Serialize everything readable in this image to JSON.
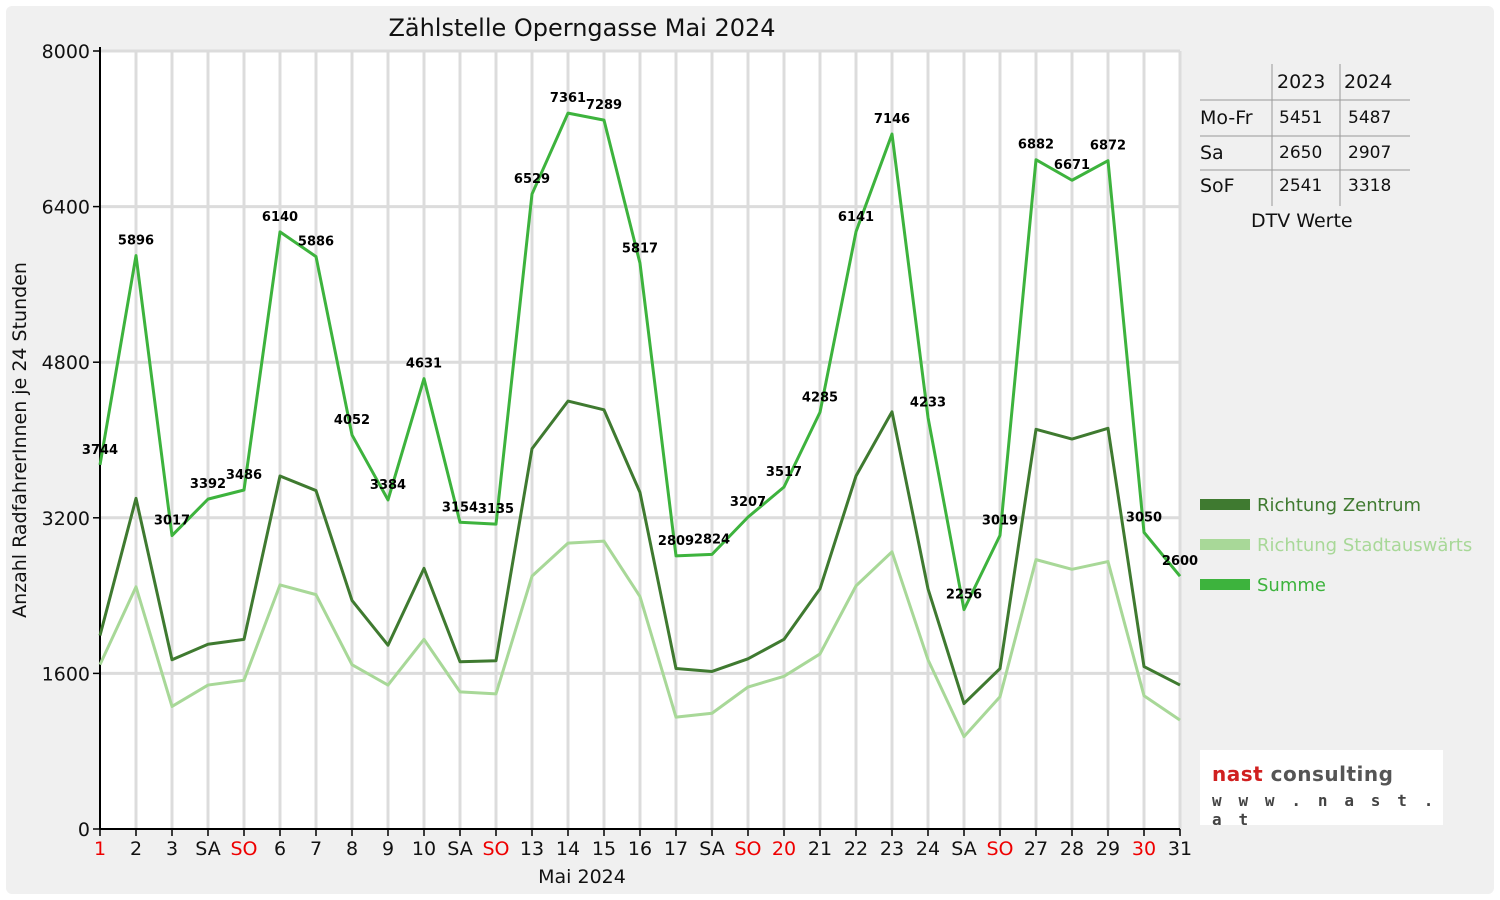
{
  "chart_data": {
    "type": "line",
    "title": "Zählstelle Operngasse Mai 2024",
    "xlabel": "Mai 2024",
    "ylabel": "Anzahl RadfahrerInnen je 24 Stunden",
    "ylim": [
      0,
      8000
    ],
    "yticks": [
      "0",
      "1600",
      "3200",
      "4800",
      "6400",
      "8000"
    ],
    "grid": true,
    "legend_position": "right",
    "categories": [
      "1",
      "2",
      "3",
      "SA",
      "SO",
      "6",
      "7",
      "8",
      "9",
      "10",
      "SA",
      "SO",
      "13",
      "14",
      "15",
      "16",
      "17",
      "SA",
      "SO",
      "20",
      "21",
      "22",
      "23",
      "24",
      "SA",
      "SO",
      "27",
      "28",
      "29",
      "30",
      "31"
    ],
    "red_categories": [
      "1",
      "SO",
      "SO",
      "SO",
      "20",
      "SO",
      "30"
    ],
    "series": [
      {
        "name": "Richtung Zentrum",
        "color": "#3f7a30",
        "values": [
          1990,
          3400,
          1740,
          1900,
          1950,
          3630,
          3480,
          2350,
          1890,
          2680,
          1720,
          1730,
          3910,
          4400,
          4310,
          3460,
          1650,
          1620,
          1750,
          1950,
          2470,
          3630,
          4290,
          2470,
          1290,
          1650,
          4110,
          4010,
          4120,
          1670,
          1480
        ]
      },
      {
        "name": "Richtung Stadtauswärts",
        "color": "#a8d898",
        "values": [
          1690,
          2490,
          1260,
          1480,
          1530,
          2510,
          2410,
          1690,
          1480,
          1950,
          1410,
          1390,
          2600,
          2940,
          2960,
          2390,
          1150,
          1190,
          1460,
          1570,
          1800,
          2500,
          2850,
          1740,
          950,
          1360,
          2770,
          2670,
          2750,
          1370,
          1120
        ]
      },
      {
        "name": "Summe",
        "color": "#3db33d",
        "values": [
          3744,
          5896,
          3017,
          3392,
          3486,
          6140,
          5886,
          4052,
          3384,
          4631,
          3154,
          3135,
          6529,
          7361,
          7289,
          5817,
          2809,
          2824,
          3207,
          3517,
          4285,
          6141,
          7146,
          4233,
          2256,
          3019,
          6882,
          6671,
          6872,
          3050,
          2600
        ]
      }
    ],
    "data_labels": [
      "3744",
      "5896",
      "3017",
      "3392",
      "3486",
      "6140",
      "5886",
      "4052",
      "3384",
      "4631",
      "3154",
      "3135",
      "6529",
      "7361",
      "7289",
      "5817",
      "2809",
      "2824",
      "3207",
      "3517",
      "4285",
      "6141",
      "7146",
      "4233",
      "2256",
      "3019",
      "6882",
      "6671",
      "6872",
      "3050",
      "2600"
    ]
  },
  "dtv_table": {
    "header": [
      "2023",
      "2024"
    ],
    "rows": [
      {
        "label": "Mo-Fr",
        "v2023": "5451",
        "v2024": "5487"
      },
      {
        "label": "Sa",
        "v2023": "2650",
        "v2024": "2907"
      },
      {
        "label": "SoF",
        "v2023": "2541",
        "v2024": "3318"
      }
    ],
    "caption": "DTV Werte"
  },
  "logo": {
    "brand_red": "nast",
    "brand_grey": " consulting",
    "url": "w w w . n a s t . a t"
  }
}
